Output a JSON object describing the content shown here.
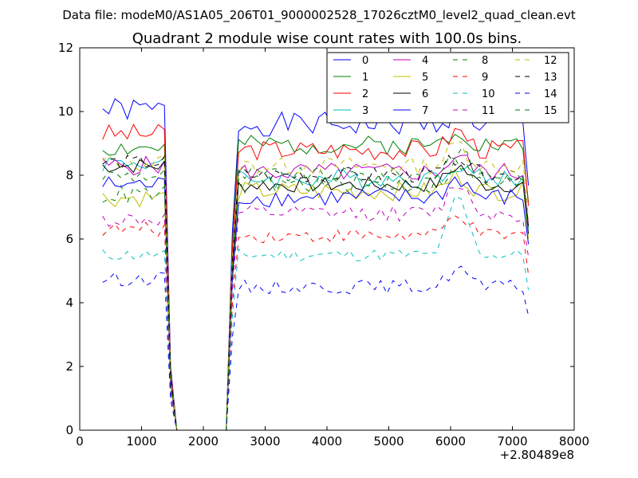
{
  "suptitle": "Data file: modeM0/AS1A05_206T01_9000002528_17026cztM0_level2_quad_clean.evt",
  "chart_data": {
    "type": "line",
    "title": "Quadrant 2 module wise count rates with 100.0s bins.",
    "xlabel": "",
    "ylabel": "",
    "x_offset_label": "+2.80489e8",
    "xlim": [
      0,
      8000
    ],
    "ylim": [
      0,
      12
    ],
    "xticks": [
      0,
      1000,
      2000,
      3000,
      4000,
      5000,
      6000,
      7000,
      8000
    ],
    "yticks": [
      0,
      2,
      4,
      6,
      8,
      10,
      12
    ],
    "grid": false,
    "legend_position": "top-right",
    "legend_columns": 4,
    "x": [
      370,
      470,
      570,
      670,
      770,
      870,
      970,
      1070,
      1170,
      1270,
      1370,
      1470,
      1570,
      2370,
      2470,
      2570,
      2670,
      2770,
      2870,
      2970,
      3070,
      3170,
      3270,
      3370,
      3470,
      3570,
      3670,
      3770,
      3870,
      3970,
      4070,
      4170,
      4270,
      4370,
      4470,
      4570,
      4670,
      4770,
      4870,
      4970,
      5070,
      5170,
      5270,
      5370,
      5470,
      5570,
      5670,
      5770,
      5870,
      5970,
      6070,
      6170,
      6270,
      6370,
      6470,
      6570,
      6670,
      6770,
      6870,
      6970,
      7070,
      7170,
      7260
    ],
    "series": [
      {
        "name": "0",
        "color": "#0000ff",
        "dash": "solid",
        "base": 9.6,
        "pre": 10.05,
        "amp": 0.38,
        "bump": 0.4,
        "seed": 1
      },
      {
        "name": "1",
        "color": "#008000",
        "dash": "solid",
        "base": 8.95,
        "pre": 8.85,
        "amp": 0.3,
        "bump": 0.5,
        "seed": 2
      },
      {
        "name": "2",
        "color": "#ff0000",
        "dash": "solid",
        "base": 8.8,
        "pre": 9.3,
        "amp": 0.32,
        "bump": 0.6,
        "seed": 3
      },
      {
        "name": "3",
        "color": "#00bfbf",
        "dash": "solid",
        "base": 7.9,
        "pre": 8.4,
        "amp": 0.3,
        "bump": 0.5,
        "seed": 4
      },
      {
        "name": "4",
        "color": "#bf00bf",
        "dash": "solid",
        "base": 8.1,
        "pre": 8.3,
        "amp": 0.3,
        "bump": 0.5,
        "seed": 5
      },
      {
        "name": "5",
        "color": "#bfbf00",
        "dash": "solid",
        "base": 7.5,
        "pre": 7.3,
        "amp": 0.3,
        "bump": 0.5,
        "seed": 6
      },
      {
        "name": "6",
        "color": "#000000",
        "dash": "solid",
        "base": 7.7,
        "pre": 8.3,
        "amp": 0.25,
        "bump": 0.6,
        "seed": 7
      },
      {
        "name": "7",
        "color": "#0000ff",
        "dash": "solid",
        "base": 7.3,
        "pre": 7.7,
        "amp": 0.3,
        "bump": 0.6,
        "seed": 8
      },
      {
        "name": "8",
        "color": "#008000",
        "dash": "dashed",
        "base": 8.0,
        "pre": 8.0,
        "amp": 0.25,
        "bump": 0.8,
        "seed": 9
      },
      {
        "name": "9",
        "color": "#ff0000",
        "dash": "dashed",
        "base": 6.1,
        "pre": 6.3,
        "amp": 0.22,
        "bump": 0.7,
        "seed": 10
      },
      {
        "name": "10",
        "color": "#00bfbf",
        "dash": "dashed",
        "base": 5.5,
        "pre": 5.5,
        "amp": 0.2,
        "bump": 1.8,
        "seed": 11
      },
      {
        "name": "11",
        "color": "#bf00bf",
        "dash": "dashed",
        "base": 6.8,
        "pre": 6.6,
        "amp": 0.25,
        "bump": 1.0,
        "seed": 12
      },
      {
        "name": "12",
        "color": "#bfbf00",
        "dash": "dashed",
        "base": 8.3,
        "pre": 8.4,
        "amp": 0.28,
        "bump": 0.7,
        "seed": 13
      },
      {
        "name": "13",
        "color": "#000000",
        "dash": "dashed",
        "base": 8.0,
        "pre": 8.4,
        "amp": 0.25,
        "bump": 0.6,
        "seed": 14
      },
      {
        "name": "14",
        "color": "#0000ff",
        "dash": "dashed",
        "base": 4.5,
        "pre": 4.75,
        "amp": 0.22,
        "bump": 0.6,
        "seed": 15
      },
      {
        "name": "15",
        "color": "#008000",
        "dash": "dashed",
        "base": 7.7,
        "pre": 7.4,
        "amp": 0.3,
        "bump": 0.7,
        "seed": 16
      }
    ]
  }
}
